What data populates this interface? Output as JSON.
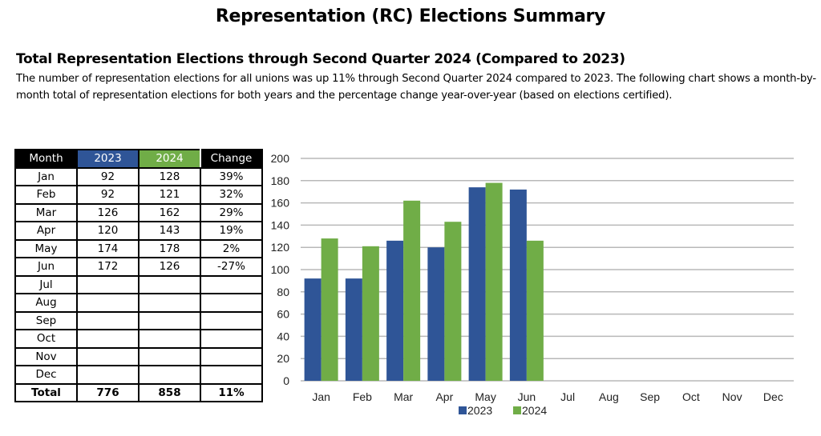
{
  "header": {
    "title": "Representation (RC) Elections Summary",
    "subtitle": "Total Representation Elections through Second Quarter 2024 (Compared to 2023)",
    "description": "The number of representation elections for all unions was up 11% through Second Quarter 2024 compared to 2023. The following chart shows a month-by-month total of representation elections for both years and the percentage change year-over-year (based on elections certified)."
  },
  "table": {
    "headers": [
      "Month",
      "2023",
      "2024",
      "Change"
    ],
    "rows": [
      [
        "Jan",
        "92",
        "128",
        "39%"
      ],
      [
        "Feb",
        "92",
        "121",
        "32%"
      ],
      [
        "Mar",
        "126",
        "162",
        "29%"
      ],
      [
        "Apr",
        "120",
        "143",
        "19%"
      ],
      [
        "May",
        "174",
        "178",
        "2%"
      ],
      [
        "Jun",
        "172",
        "126",
        "-27%"
      ],
      [
        "Jul",
        "",
        "",
        ""
      ],
      [
        "Aug",
        "",
        "",
        ""
      ],
      [
        "Sep",
        "",
        "",
        ""
      ],
      [
        "Oct",
        "",
        "",
        ""
      ],
      [
        "Nov",
        "",
        "",
        ""
      ],
      [
        "Dec",
        "",
        "",
        ""
      ]
    ],
    "total": [
      "Total",
      "776",
      "858",
      "11%"
    ]
  },
  "chart_data": {
    "type": "bar",
    "categories": [
      "Jan",
      "Feb",
      "Mar",
      "Apr",
      "May",
      "Jun",
      "Jul",
      "Aug",
      "Sep",
      "Oct",
      "Nov",
      "Dec"
    ],
    "series": [
      {
        "name": "2023",
        "color": "#2f5597",
        "values": [
          92,
          92,
          126,
          120,
          174,
          172,
          null,
          null,
          null,
          null,
          null,
          null
        ]
      },
      {
        "name": "2024",
        "color": "#70ad47",
        "values": [
          128,
          121,
          162,
          143,
          178,
          126,
          null,
          null,
          null,
          null,
          null,
          null
        ]
      }
    ],
    "ylim": [
      0,
      200
    ],
    "yticks": [
      0,
      20,
      40,
      60,
      80,
      100,
      120,
      140,
      160,
      180,
      200
    ],
    "grid": true,
    "legend": "bottom"
  }
}
